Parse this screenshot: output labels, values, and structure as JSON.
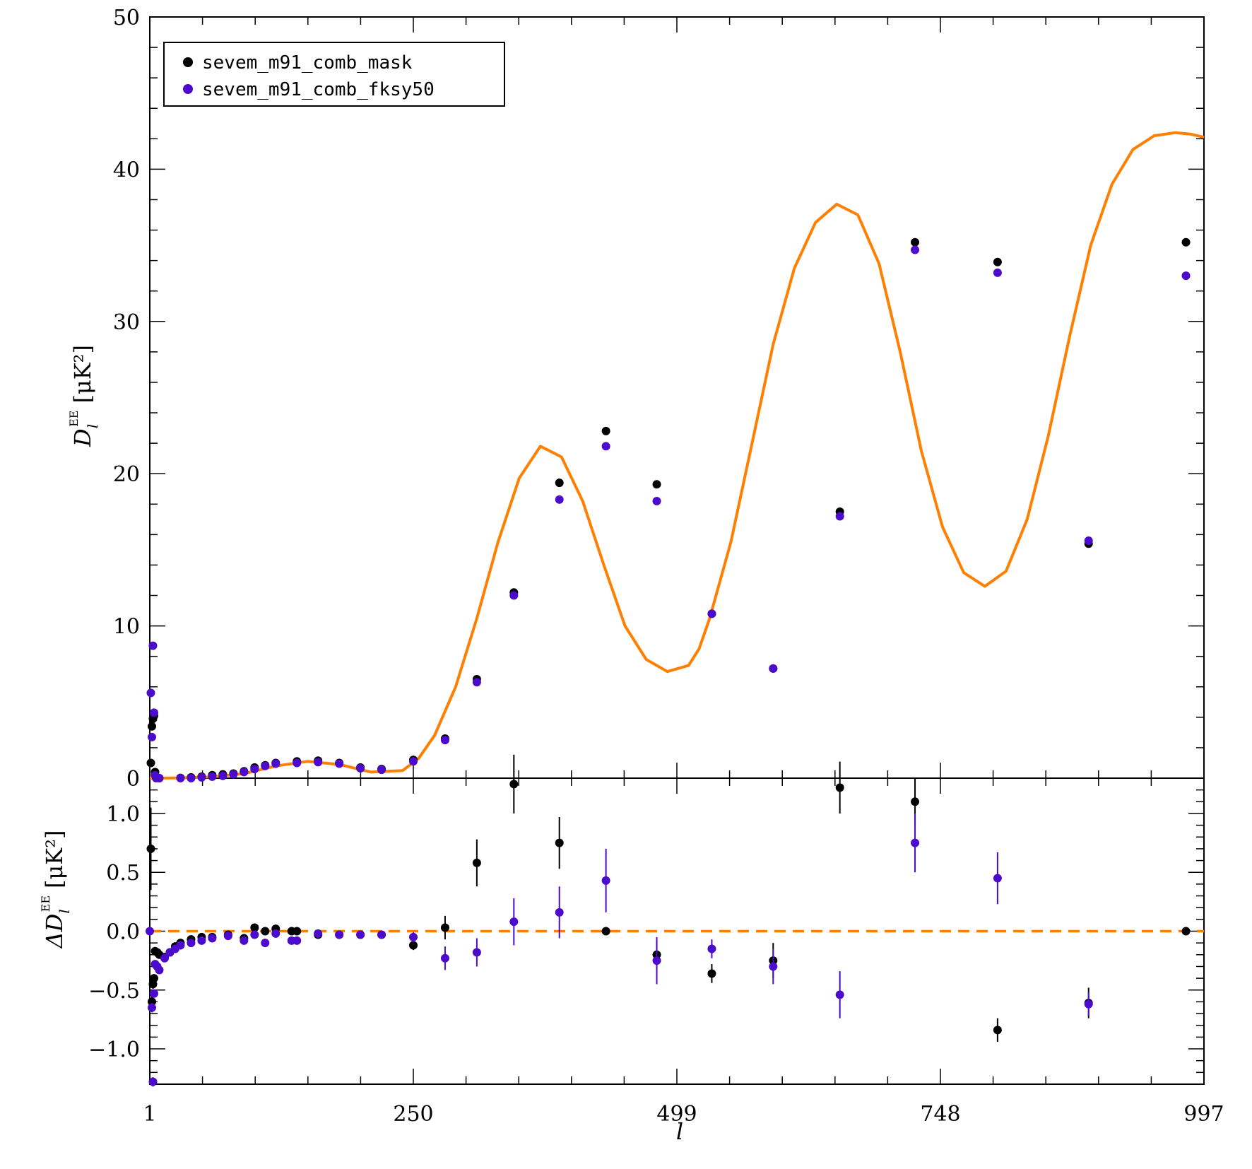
{
  "chart_data": [
    {
      "type": "scatter",
      "panel": "top",
      "ylabel_main": "D",
      "ylabel_sub": "l",
      "ylabel_sup": "EE",
      "ylabel_unit": "[μK²]",
      "xlim": [
        1,
        997
      ],
      "ylim": [
        0,
        50
      ],
      "x_ticks": [
        "1",
        "250",
        "499",
        "748",
        "997"
      ],
      "y_ticks": [
        "0",
        "10",
        "20",
        "30",
        "40",
        "50"
      ],
      "legend": {
        "placement": "top-left",
        "entries": [
          {
            "label": "sevem_m91_comb_mask",
            "color": "#000000"
          },
          {
            "label": "sevem_m91_comb_fksy50",
            "color": "#4b0acc"
          }
        ]
      },
      "model_curve": {
        "color": "#ff7f00",
        "x": [
          1,
          30,
          60,
          90,
          120,
          150,
          180,
          210,
          240,
          255,
          270,
          290,
          310,
          330,
          350,
          370,
          390,
          410,
          430,
          450,
          470,
          490,
          510,
          520,
          530,
          550,
          570,
          590,
          610,
          630,
          650,
          670,
          690,
          710,
          730,
          750,
          770,
          790,
          810,
          830,
          850,
          870,
          890,
          910,
          930,
          950,
          970,
          985,
          997
        ],
        "y": [
          0.0,
          0.02,
          0.08,
          0.3,
          0.8,
          1.1,
          0.9,
          0.4,
          0.5,
          1.3,
          2.8,
          6.0,
          10.5,
          15.5,
          19.7,
          21.8,
          21.1,
          18.2,
          14.0,
          10.0,
          7.8,
          7.0,
          7.4,
          8.5,
          10.5,
          15.5,
          22.0,
          28.5,
          33.5,
          36.5,
          37.7,
          37.0,
          33.8,
          28.0,
          21.5,
          16.5,
          13.5,
          12.6,
          13.6,
          17.0,
          22.5,
          29.0,
          35.0,
          39.0,
          41.3,
          42.2,
          42.4,
          42.3,
          42.1
        ]
      },
      "series": [
        {
          "name": "sevem_m91_comb_mask",
          "color": "#000000",
          "x": [
            2,
            3,
            4,
            5,
            6,
            7,
            10,
            30,
            40,
            50,
            60,
            70,
            80,
            90,
            100,
            110,
            120,
            140,
            160,
            180,
            200,
            220,
            250,
            280,
            310,
            345,
            388,
            432,
            480,
            532,
            590,
            653,
            724,
            802,
            888,
            980
          ],
          "y": [
            1.0,
            3.4,
            3.9,
            4.1,
            0.4,
            0.05,
            0.0,
            0.02,
            0.05,
            0.1,
            0.2,
            0.25,
            0.3,
            0.45,
            0.7,
            0.85,
            1.0,
            1.1,
            1.15,
            1.0,
            0.7,
            0.6,
            1.2,
            2.6,
            6.5,
            12.2,
            19.4,
            22.8,
            19.3,
            10.8,
            7.2,
            17.5,
            35.2,
            33.9,
            15.4,
            35.2
          ]
        },
        {
          "name": "sevem_m91_comb_fksy50",
          "color": "#4b0acc",
          "x": [
            2,
            3,
            4,
            5,
            6,
            7,
            10,
            30,
            40,
            50,
            60,
            70,
            80,
            90,
            100,
            110,
            120,
            140,
            160,
            180,
            200,
            220,
            250,
            280,
            310,
            345,
            388,
            432,
            480,
            532,
            590,
            653,
            724,
            802,
            888,
            980
          ],
          "y": [
            5.6,
            2.7,
            8.7,
            4.3,
            0.2,
            0.0,
            0.0,
            0.0,
            0.0,
            0.05,
            0.1,
            0.15,
            0.25,
            0.4,
            0.6,
            0.8,
            0.95,
            1.0,
            1.05,
            0.95,
            0.65,
            0.55,
            1.1,
            2.5,
            6.3,
            12.0,
            18.3,
            21.8,
            18.2,
            10.8,
            7.2,
            17.2,
            34.7,
            33.2,
            15.6,
            33.0
          ]
        }
      ]
    },
    {
      "type": "scatter",
      "panel": "bottom",
      "ylabel_main": "ΔD",
      "ylabel_sub": "l",
      "ylabel_sup": "EE",
      "ylabel_unit": "[μK²]",
      "xlabel": "l",
      "xlim": [
        1,
        997
      ],
      "ylim": [
        -1.3,
        1.3
      ],
      "y_ticks": [
        "−1.0",
        "−0.5",
        "0.0",
        "0.5",
        "1.0"
      ],
      "y_tick_values": [
        -1.0,
        -0.5,
        0.0,
        0.5,
        1.0
      ],
      "reference_line": {
        "y": 0.0,
        "color": "#ff7f00",
        "style": "dashed"
      },
      "series": [
        {
          "name": "sevem_m91_comb_mask",
          "color": "#000000",
          "x": [
            2,
            3,
            4,
            5,
            6,
            8,
            10,
            15,
            20,
            25,
            30,
            40,
            50,
            60,
            75,
            90,
            100,
            110,
            120,
            135,
            140,
            160,
            180,
            200,
            220,
            250,
            280,
            310,
            345,
            388,
            432,
            480,
            532,
            590,
            653,
            724,
            802,
            888,
            980
          ],
          "y": [
            0.7,
            -0.6,
            -0.45,
            -0.4,
            -0.17,
            -0.18,
            -0.2,
            -0.22,
            -0.18,
            -0.13,
            -0.1,
            -0.07,
            -0.05,
            -0.05,
            -0.03,
            -0.06,
            0.03,
            0.0,
            0.02,
            0.0,
            0.0,
            -0.03,
            -0.03,
            -0.03,
            -0.03,
            -0.12,
            0.03,
            0.58,
            1.25,
            0.75,
            0.0,
            -0.2,
            -0.36,
            -0.25,
            1.22,
            1.1,
            -0.84,
            -0.61,
            0.0
          ],
          "err": [
            0.35,
            0.05,
            0.04,
            0.03,
            0.02,
            0.02,
            0.02,
            0.02,
            0.02,
            0.02,
            0.02,
            0.02,
            0.02,
            0.02,
            0.02,
            0.02,
            0.02,
            0.02,
            0.02,
            0.02,
            0.02,
            0.02,
            0.02,
            0.02,
            0.02,
            0.04,
            0.1,
            0.2,
            0.25,
            0.22,
            0.0,
            0.12,
            0.08,
            0.15,
            0.22,
            0.2,
            0.1,
            0.13,
            0.0
          ]
        },
        {
          "name": "sevem_m91_comb_fksy50",
          "color": "#4b0acc",
          "x": [
            1,
            3,
            4,
            5,
            6,
            8,
            10,
            15,
            20,
            25,
            30,
            40,
            50,
            60,
            75,
            90,
            100,
            110,
            120,
            135,
            140,
            160,
            180,
            200,
            220,
            250,
            280,
            310,
            345,
            388,
            432,
            480,
            532,
            590,
            653,
            724,
            802,
            888
          ],
          "y": [
            0.0,
            -0.65,
            -1.28,
            -0.53,
            -0.28,
            -0.3,
            -0.33,
            -0.23,
            -0.18,
            -0.15,
            -0.12,
            -0.1,
            -0.08,
            -0.06,
            -0.04,
            -0.08,
            -0.03,
            -0.1,
            -0.02,
            -0.08,
            -0.08,
            -0.02,
            -0.03,
            -0.03,
            -0.03,
            -0.05,
            -0.23,
            -0.18,
            0.08,
            0.16,
            0.43,
            -0.25,
            -0.15,
            -0.3,
            -0.54,
            0.75,
            0.45,
            -0.62
          ],
          "err": [
            0.0,
            0.04,
            0.04,
            0.03,
            0.02,
            0.02,
            0.02,
            0.02,
            0.02,
            0.02,
            0.02,
            0.02,
            0.02,
            0.02,
            0.02,
            0.02,
            0.02,
            0.02,
            0.02,
            0.02,
            0.02,
            0.02,
            0.02,
            0.02,
            0.02,
            0.04,
            0.1,
            0.12,
            0.2,
            0.22,
            0.27,
            0.2,
            0.08,
            0.15,
            0.2,
            0.25,
            0.22,
            0.1
          ]
        }
      ]
    }
  ]
}
